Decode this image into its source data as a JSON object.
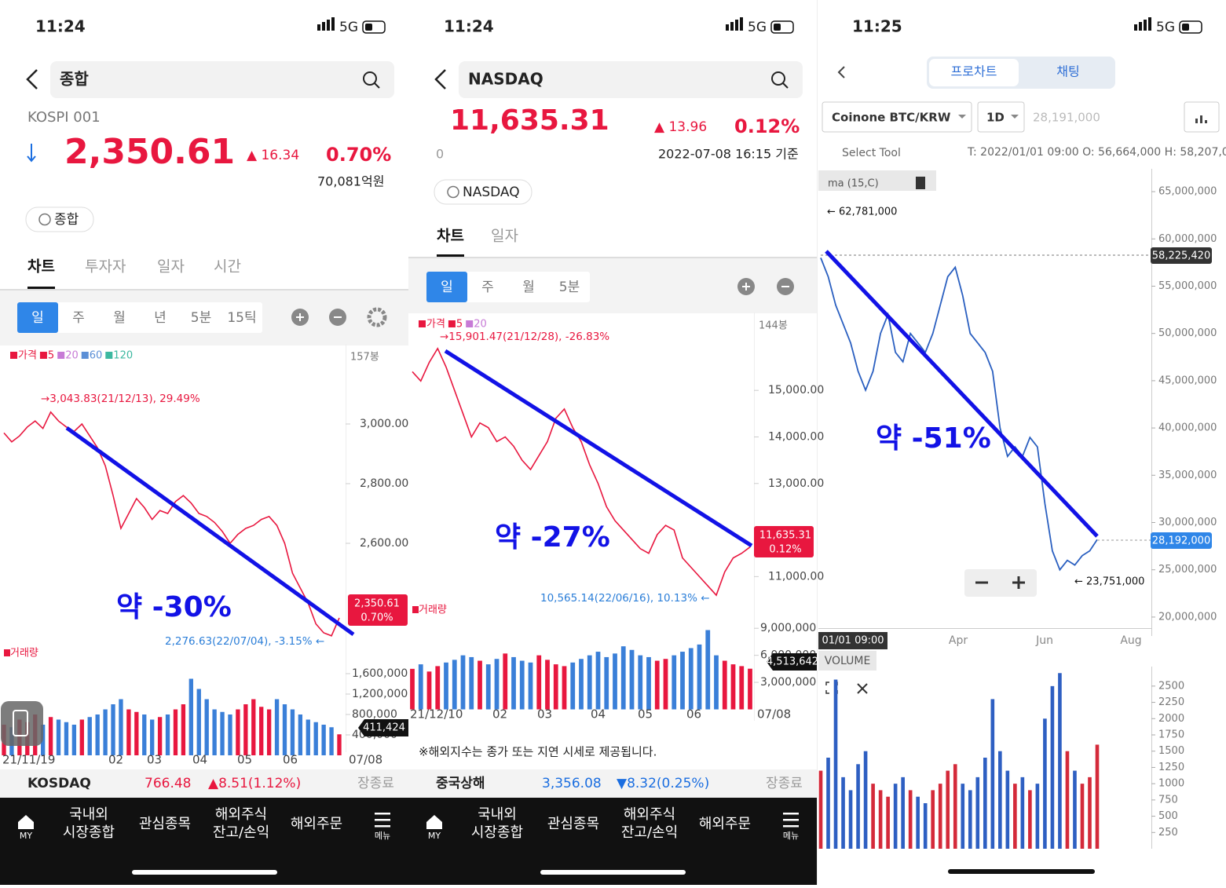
{
  "nav": [
    [
      "MY"
    ],
    [
      "국내외",
      "시장종합"
    ],
    [
      "관심종목"
    ],
    [
      "해외주식",
      "잔고/손익"
    ],
    [
      "해외주문"
    ],
    [
      "메뉴"
    ]
  ],
  "kospi": {
    "time": "11:24",
    "network": "5G",
    "search": "종합",
    "code": "KOSPI 001",
    "price": "2,350.61",
    "change": "▲ 16.34",
    "change_pct": "0.70%",
    "turnover": "70,081억원",
    "chip": "종합",
    "tabs": [
      "차트",
      "투자자",
      "일자",
      "시간"
    ],
    "periods": [
      "일",
      "주",
      "월",
      "년",
      "5분",
      "15틱"
    ],
    "legend": [
      {
        "name": "가격",
        "color": "#e8173f"
      },
      {
        "name": "5",
        "color": "#e8173f"
      },
      {
        "name": "20",
        "color": "#c77ad6"
      },
      {
        "name": "60",
        "color": "#5b8fd6"
      },
      {
        "name": "120",
        "color": "#3cb8a0"
      }
    ],
    "bar_count": "157봉",
    "high_note": "→3,043.83(21/12/13), 29.49%",
    "low_note": "2,276.63(22/07/04), -3.15%  ←",
    "annotation": "약 -30%",
    "ylim": [
      2250,
      3200
    ],
    "yticks": [
      {
        "value": 3000,
        "label": "3,000.00"
      },
      {
        "value": 2800,
        "label": "2,800.00"
      },
      {
        "value": 2600,
        "label": "2,600.00"
      }
    ],
    "prices": [
      2970,
      2940,
      2960,
      2990,
      3010,
      2985,
      3040,
      3010,
      2990,
      2975,
      3000,
      2960,
      2920,
      2860,
      2760,
      2650,
      2700,
      2750,
      2720,
      2680,
      2710,
      2700,
      2740,
      2760,
      2735,
      2700,
      2690,
      2670,
      2640,
      2600,
      2630,
      2650,
      2660,
      2680,
      2690,
      2660,
      2600,
      2500,
      2450,
      2400,
      2330,
      2300,
      2290,
      2350
    ],
    "volume_title": "거래량",
    "vlim": [
      0,
      1800000
    ],
    "vticks": [
      {
        "value": 1600000,
        "label": "1,600,000"
      },
      {
        "value": 1200000,
        "label": "1,200,000"
      },
      {
        "value": 800000,
        "label": "800,000"
      },
      {
        "value": 400000,
        "label": "400,000"
      }
    ],
    "volumes": [
      600000,
      550000,
      700000,
      650000,
      800000,
      600000,
      750000,
      700000,
      650000,
      600000,
      700000,
      750000,
      800000,
      900000,
      1000000,
      1100000,
      900000,
      850000,
      800000,
      700000,
      750000,
      800000,
      900000,
      1000000,
      1500000,
      1300000,
      1100000,
      900000,
      850000,
      800000,
      900000,
      1000000,
      1100000,
      950000,
      900000,
      1100000,
      1000000,
      900000,
      800000,
      700000,
      650000,
      600000,
      550000,
      411424
    ],
    "last_tag": [
      "2,350.61",
      "0.70%"
    ],
    "volume_tag": "411,424",
    "xlabels": [
      "21/11/19",
      "02",
      "03",
      "04",
      "05",
      "06",
      "07/08"
    ],
    "ticker": {
      "name": "KOSDAQ",
      "price": "766.48",
      "change": "▲8.51(1.12%)",
      "status": "장종료"
    }
  },
  "nasdaq": {
    "time": "11:24",
    "network": "5G",
    "search": "NASDAQ",
    "price": "11,635.31",
    "change": "▲ 13.96",
    "change_pct": "0.12%",
    "zero": "0",
    "timestamp": "2022-07-08 16:15 기준",
    "chip": "NASDAQ",
    "tabs": [
      "차트",
      "일자"
    ],
    "periods": [
      "일",
      "주",
      "월",
      "5분"
    ],
    "legend": [
      {
        "name": "가격",
        "color": "#e8173f"
      },
      {
        "name": "5",
        "color": "#e8173f"
      },
      {
        "name": "20",
        "color": "#c77ad6"
      }
    ],
    "bar_count": "144봉",
    "high_note": "→15,901.47(21/12/28), -26.83%",
    "low_note": "10,565.14(22/06/16), 10.13%  ←",
    "annotation": "약 -27%",
    "ylim": [
      10500,
      16150
    ],
    "yticks": [
      {
        "value": 15000,
        "label": "15,000.00"
      },
      {
        "value": 14000,
        "label": "14,000.00"
      },
      {
        "value": 13000,
        "label": "13,000.00"
      },
      {
        "value": 11000,
        "label": "11,000.00"
      }
    ],
    "prices": [
      15400,
      15200,
      15600,
      15900,
      15500,
      15000,
      14500,
      14000,
      14300,
      14200,
      13900,
      14000,
      13800,
      13500,
      13300,
      13600,
      13900,
      14400,
      14600,
      14200,
      13900,
      13400,
      13000,
      12500,
      12200,
      12000,
      11800,
      11600,
      11500,
      11900,
      12100,
      12000,
      11400,
      11200,
      11000,
      10800,
      10600,
      11100,
      11400,
      11500,
      11635.31
    ],
    "volume_title": "거래량",
    "vlim": [
      0,
      10500000
    ],
    "vticks": [
      {
        "value": 9000000,
        "label": "9,000,000"
      },
      {
        "value": 6000000,
        "label": "6,000,000"
      },
      {
        "value": 3000000,
        "label": "3,000,000"
      }
    ],
    "volumes": [
      4500000,
      5000000,
      4200000,
      4800000,
      5200000,
      5500000,
      6000000,
      5800000,
      5400000,
      5000000,
      5600000,
      6200000,
      5800000,
      5400000,
      5200000,
      6000000,
      5500000,
      5000000,
      4800000,
      5200000,
      5600000,
      6000000,
      6400000,
      5800000,
      6200000,
      7000000,
      6600000,
      6000000,
      5800000,
      5400000,
      5600000,
      6000000,
      6400000,
      6800000,
      7200000,
      8800000,
      6000000,
      5400000,
      5000000,
      4800000,
      4513642
    ],
    "last_tag": [
      "11,635.31",
      "0.12%"
    ],
    "volume_tag": "4,513,642",
    "xlabels": [
      "21/12/10",
      "02",
      "03",
      "04",
      "05",
      "06",
      "07/08"
    ],
    "notice": "※해외지수는 종가 또는 지연 시세로 제공됩니다.",
    "ticker": {
      "name": "중국상해",
      "price": "3,356.08",
      "change": "▼8.32(0.25%)",
      "status": "장종료"
    }
  },
  "btc": {
    "time": "11:25",
    "network": "5G",
    "tabs": [
      "프로차트",
      "채팅"
    ],
    "pair": "Coinone BTC/KRW",
    "interval": "1D",
    "quote": "28,191,000",
    "tool": "Select Tool",
    "ohlc": "T: 2022/01/01 09:00   O: 56,664,000   H: 58,207,0",
    "ma_label": "ma (15,C)",
    "high_note": "← 62,781,000",
    "low_note": "← 23,751,000",
    "ref_tag": "58,225,420",
    "last_tag": "28,192,000",
    "annotation": "약 -51%",
    "ylim": [
      18000000,
      67000000
    ],
    "yticks": [
      {
        "value": 65000000,
        "label": "65,000,000"
      },
      {
        "value": 60000000,
        "label": "60,000,000"
      },
      {
        "value": 55000000,
        "label": "55,000,000"
      },
      {
        "value": 50000000,
        "label": "50,000,000"
      },
      {
        "value": 45000000,
        "label": "45,000,000"
      },
      {
        "value": 40000000,
        "label": "40,000,000"
      },
      {
        "value": 35000000,
        "label": "35,000,000"
      },
      {
        "value": 30000000,
        "label": "30,000,000"
      },
      {
        "value": 25000000,
        "label": "25,000,000"
      },
      {
        "value": 20000000,
        "label": "20,000,000"
      }
    ],
    "prices": [
      58000000,
      56000000,
      53000000,
      51000000,
      49000000,
      46000000,
      44000000,
      46000000,
      50000000,
      52000000,
      48000000,
      47000000,
      50000000,
      49000000,
      48000000,
      50000000,
      53000000,
      56000000,
      57000000,
      54000000,
      50000000,
      49000000,
      48000000,
      46000000,
      40000000,
      37000000,
      38000000,
      37000000,
      39000000,
      38000000,
      32000000,
      27000000,
      25000000,
      26000000,
      25500000,
      26500000,
      27000000,
      28192000
    ],
    "xlabels": [
      "01/01 09:00",
      "Apr",
      "Jun",
      "Aug"
    ],
    "volume_title": "VOLUME",
    "vlim": [
      0,
      2800
    ],
    "vticks": [
      2500,
      2250,
      2000,
      1750,
      1500,
      1250,
      1000,
      750,
      500,
      250
    ],
    "volumes": [
      1200,
      1400,
      2600,
      1100,
      900,
      1300,
      1500,
      1000,
      900,
      800,
      1000,
      1100,
      900,
      800,
      700,
      900,
      1000,
      1200,
      1300,
      1000,
      900,
      1100,
      1400,
      2300,
      1500,
      1200,
      1000,
      1100,
      900,
      1000,
      2000,
      2500,
      2700,
      1500,
      1200,
      1000,
      1100,
      1600
    ]
  }
}
